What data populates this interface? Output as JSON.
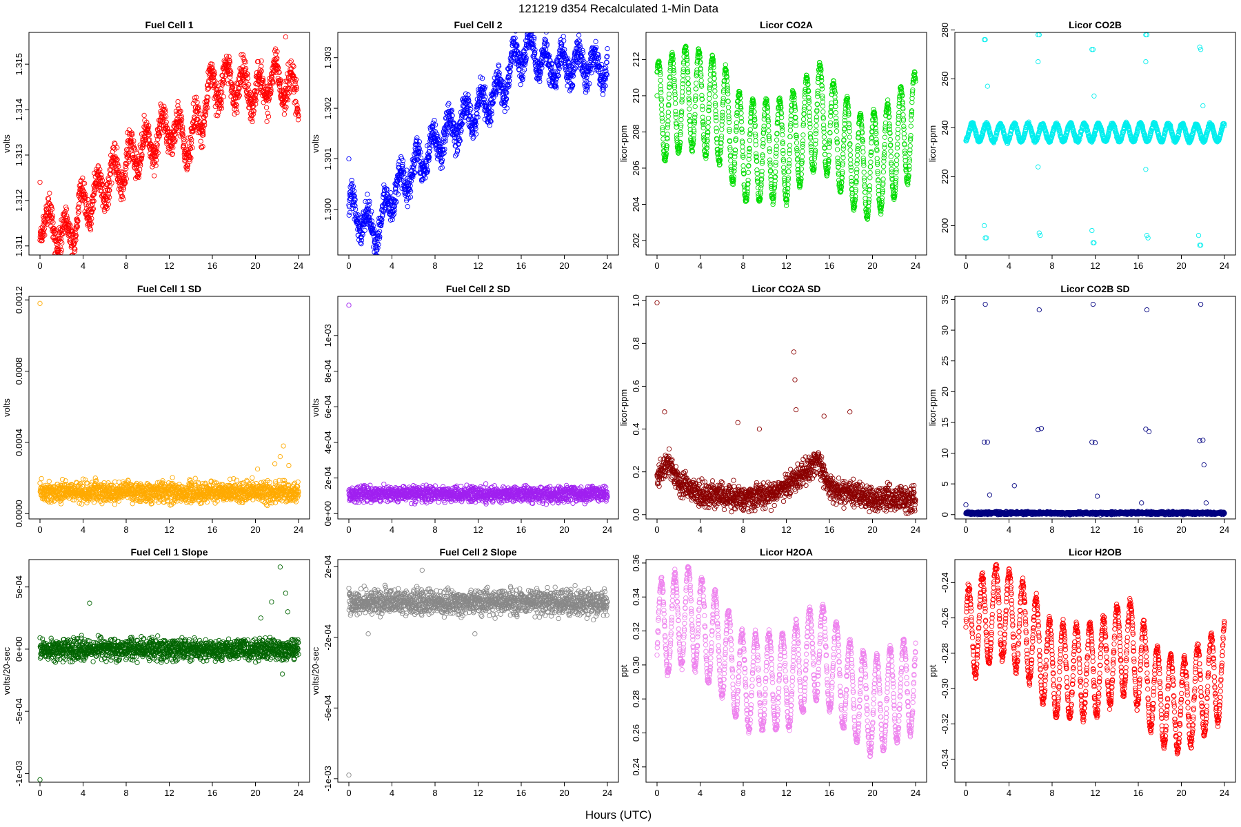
{
  "figure": {
    "title": "121219   d354   Recalculated 1-Min Data",
    "xlabel": "Hours (UTC)"
  },
  "chart_data": [
    {
      "type": "scatter",
      "title": "Fuel Cell 1",
      "ylabel": "volts",
      "xlim": [
        0,
        24
      ],
      "ylim": [
        1.3108,
        1.3157
      ],
      "yticks": [
        1.311,
        1.312,
        1.313,
        1.314,
        1.315
      ],
      "ytick_labels": [
        "1.311",
        "1.312",
        "1.313",
        "1.314",
        "1.315"
      ],
      "xticks": [
        0,
        4,
        8,
        12,
        16,
        20,
        24
      ],
      "color": "#ff0000",
      "outliers": [
        [
          0,
          1.3124
        ],
        [
          22.8,
          1.3156
        ]
      ],
      "series": [
        {
          "trend": [
            [
              0,
              1.3117
            ],
            [
              2.5,
              1.3111
            ],
            [
              4,
              1.3119
            ],
            [
              8,
              1.3128
            ],
            [
              12,
              1.3136
            ],
            [
              14,
              1.3133
            ],
            [
              16,
              1.3145
            ],
            [
              18,
              1.3146
            ],
            [
              20,
              1.3144
            ],
            [
              22,
              1.3147
            ],
            [
              24,
              1.3143
            ]
          ],
          "noise": 0.00025,
          "wave_amp": 0.0004,
          "wave_period": 1.5
        }
      ]
    },
    {
      "type": "scatter",
      "title": "Fuel Cell 2",
      "ylabel": "volts",
      "xlim": [
        0,
        24
      ],
      "ylim": [
        1.2991,
        1.3035
      ],
      "yticks": [
        1.3,
        1.301,
        1.302,
        1.303
      ],
      "ytick_labels": [
        "1.300",
        "1.301",
        "1.302",
        "1.303"
      ],
      "xticks": [
        0,
        4,
        8,
        12,
        16,
        20,
        24
      ],
      "color": "#0000ff",
      "outliers": [
        [
          0,
          1.301
        ]
      ],
      "series": [
        {
          "trend": [
            [
              0,
              1.3001
            ],
            [
              2.5,
              1.2995
            ],
            [
              4,
              1.3003
            ],
            [
              8,
              1.3013
            ],
            [
              12,
              1.302
            ],
            [
              14,
              1.3023
            ],
            [
              15.5,
              1.303
            ],
            [
              17,
              1.3032
            ],
            [
              18.5,
              1.3028
            ],
            [
              20,
              1.3029
            ],
            [
              24,
              1.3028
            ]
          ],
          "noise": 0.0002,
          "wave_amp": 0.0003,
          "wave_period": 1.5
        }
      ]
    },
    {
      "type": "scatter",
      "title": "Licor CO2A",
      "ylabel": "licor-ppm",
      "xlim": [
        0,
        24
      ],
      "ylim": [
        201.2,
        213.5
      ],
      "yticks": [
        202,
        204,
        206,
        208,
        210,
        212
      ],
      "ytick_labels": [
        "202",
        "204",
        "206",
        "208",
        "210",
        "212"
      ],
      "xticks": [
        0,
        4,
        8,
        12,
        16,
        20,
        24
      ],
      "color": "#00dd00",
      "outliers": [
        [
          0,
          210
        ]
      ],
      "series": [
        {
          "trend": [
            [
              0,
              209
            ],
            [
              3,
              210
            ],
            [
              6,
              209
            ],
            [
              8,
              207
            ],
            [
              12,
              207
            ],
            [
              15,
              209
            ],
            [
              17,
              207.5
            ],
            [
              19,
              206
            ],
            [
              21,
              206.5
            ],
            [
              24,
              208.5
            ]
          ],
          "noise": 0.15,
          "wave_amp": 2.8,
          "wave_period": 1.25
        }
      ]
    },
    {
      "type": "scatter",
      "title": "Licor CO2B",
      "ylabel": "licor-ppm",
      "xlim": [
        0,
        24
      ],
      "ylim": [
        188,
        279
      ],
      "yticks": [
        200,
        220,
        240,
        260,
        280
      ],
      "ytick_labels": [
        "200",
        "220",
        "240",
        "260",
        "280"
      ],
      "xticks": [
        0,
        4,
        8,
        12,
        16,
        20,
        24
      ],
      "color": "#00eeee",
      "outliers": [
        [
          1.7,
          276
        ],
        [
          1.8,
          276
        ],
        [
          1.7,
          200
        ],
        [
          1.8,
          195
        ],
        [
          1.9,
          195
        ],
        [
          2.0,
          257
        ],
        [
          6.7,
          278
        ],
        [
          6.8,
          278
        ],
        [
          6.7,
          267
        ],
        [
          6.8,
          197
        ],
        [
          6.9,
          196
        ],
        [
          6.7,
          224
        ],
        [
          11.7,
          272
        ],
        [
          11.8,
          272
        ],
        [
          11.7,
          198
        ],
        [
          11.8,
          193
        ],
        [
          11.9,
          193
        ],
        [
          11.9,
          253
        ],
        [
          16.7,
          278
        ],
        [
          16.8,
          278
        ],
        [
          16.7,
          267
        ],
        [
          16.8,
          196
        ],
        [
          16.9,
          195
        ],
        [
          16.7,
          223
        ],
        [
          21.7,
          273
        ],
        [
          21.8,
          272
        ],
        [
          21.6,
          196
        ],
        [
          21.7,
          192
        ],
        [
          21.8,
          192
        ],
        [
          22.0,
          249
        ]
      ],
      "series": [
        {
          "trend": [
            [
              0,
              238
            ],
            [
              24,
              238
            ]
          ],
          "noise": 0.5,
          "wave_amp": 3.5,
          "wave_period": 1.3
        }
      ]
    },
    {
      "type": "scatter",
      "title": "Fuel Cell 1 SD",
      "ylabel": "volts",
      "xlim": [
        0,
        24
      ],
      "ylim": [
        -3e-05,
        0.00122
      ],
      "yticks": [
        0.0,
        0.0004,
        0.0008,
        0.0012
      ],
      "ytick_labels": [
        "0.0000",
        "0.0004",
        "0.0008",
        "0.0012"
      ],
      "xticks": [
        0,
        4,
        8,
        12,
        16,
        20,
        24
      ],
      "color": "#ffaa00",
      "outliers": [
        [
          0,
          0.00118
        ],
        [
          22.6,
          0.00038
        ],
        [
          22.3,
          0.00032
        ],
        [
          21.8,
          0.00028
        ],
        [
          20.2,
          0.00025
        ],
        [
          23.1,
          0.00027
        ]
      ],
      "series": [
        {
          "trend": [
            [
              0,
              0.00012
            ],
            [
              24,
              0.00012
            ]
          ],
          "noise": 4e-05,
          "wave_amp": 0,
          "wave_period": 1
        }
      ]
    },
    {
      "type": "scatter",
      "title": "Fuel Cell 2 SD",
      "ylabel": "volts",
      "xlim": [
        0,
        24
      ],
      "ylim": [
        -3e-05,
        0.00122
      ],
      "yticks": [
        0,
        0.0002,
        0.0004,
        0.0006,
        0.0008,
        0.001
      ],
      "ytick_labels": [
        "0e+00",
        "2e-04",
        "4e-04",
        "6e-04",
        "8e-04",
        "1e-03"
      ],
      "xticks": [
        0,
        4,
        8,
        12,
        16,
        20,
        24
      ],
      "color": "#a020f0",
      "outliers": [
        [
          0,
          0.00117
        ]
      ],
      "series": [
        {
          "trend": [
            [
              0,
              0.00011
            ],
            [
              24,
              0.00011
            ]
          ],
          "noise": 3e-05,
          "wave_amp": 0,
          "wave_period": 1
        }
      ]
    },
    {
      "type": "scatter",
      "title": "Licor CO2A SD",
      "ylabel": "licor-ppm",
      "xlim": [
        0,
        24
      ],
      "ylim": [
        -0.02,
        1.02
      ],
      "yticks": [
        0.0,
        0.2,
        0.4,
        0.6,
        0.8,
        1.0
      ],
      "ytick_labels": [
        "0.0",
        "0.2",
        "0.4",
        "0.6",
        "0.8",
        "1.0"
      ],
      "xticks": [
        0,
        4,
        8,
        12,
        16,
        20,
        24
      ],
      "color": "#8b0000",
      "outliers": [
        [
          0,
          0.99
        ],
        [
          12.7,
          0.76
        ],
        [
          12.8,
          0.63
        ],
        [
          12.9,
          0.49
        ],
        [
          0.7,
          0.48
        ],
        [
          17.9,
          0.48
        ],
        [
          15.5,
          0.46
        ],
        [
          9.5,
          0.4
        ],
        [
          7.5,
          0.43
        ]
      ],
      "series": [
        {
          "trend": [
            [
              0,
              0.17
            ],
            [
              1,
              0.25
            ],
            [
              2,
              0.15
            ],
            [
              4,
              0.1
            ],
            [
              8,
              0.08
            ],
            [
              11,
              0.1
            ],
            [
              13,
              0.17
            ],
            [
              15,
              0.25
            ],
            [
              16,
              0.12
            ],
            [
              18,
              0.1
            ],
            [
              20,
              0.08
            ],
            [
              24,
              0.07
            ]
          ],
          "noise": 0.04,
          "wave_amp": 0,
          "wave_period": 1
        }
      ]
    },
    {
      "type": "scatter",
      "title": "Licor CO2B SD",
      "ylabel": "licor-ppm",
      "xlim": [
        0,
        24
      ],
      "ylim": [
        -0.7,
        35.5
      ],
      "yticks": [
        0,
        5,
        10,
        15,
        20,
        25,
        30,
        35
      ],
      "ytick_labels": [
        "0",
        "5",
        "10",
        "15",
        "20",
        "25",
        "30",
        "35"
      ],
      "xticks": [
        0,
        4,
        8,
        12,
        16,
        20,
        24
      ],
      "color": "#000080",
      "outliers": [
        [
          1.8,
          34.2
        ],
        [
          1.7,
          11.8
        ],
        [
          2.0,
          11.8
        ],
        [
          2.2,
          3.2
        ],
        [
          6.8,
          33.3
        ],
        [
          6.7,
          13.8
        ],
        [
          7.0,
          14
        ],
        [
          4.5,
          4.7
        ],
        [
          11.8,
          34.2
        ],
        [
          11.7,
          11.8
        ],
        [
          12.0,
          11.7
        ],
        [
          12.2,
          3
        ],
        [
          16.8,
          33.3
        ],
        [
          16.7,
          13.9
        ],
        [
          17.0,
          13.5
        ],
        [
          16.3,
          1.9
        ],
        [
          21.8,
          34.2
        ],
        [
          21.7,
          12
        ],
        [
          22.0,
          12.1
        ],
        [
          22.1,
          8.1
        ],
        [
          22.3,
          1.9
        ],
        [
          0,
          1.6
        ]
      ],
      "series": [
        {
          "trend": [
            [
              0,
              0.25
            ],
            [
              24,
              0.25
            ]
          ],
          "noise": 0.15,
          "wave_amp": 0,
          "wave_period": 1
        }
      ]
    },
    {
      "type": "scatter",
      "title": "Fuel Cell 1 Slope",
      "ylabel": "volts/20-sec",
      "xlim": [
        0,
        24
      ],
      "ylim": [
        -0.00107,
        0.00072
      ],
      "yticks": [
        -0.001,
        -0.0005,
        0,
        0.0005
      ],
      "ytick_labels": [
        "-1e-03",
        "-5e-04",
        "0e+00",
        "5e-04"
      ],
      "xticks": [
        0,
        4,
        8,
        12,
        16,
        20,
        24
      ],
      "color": "#006400",
      "outliers": [
        [
          0,
          -0.00105
        ],
        [
          22.3,
          0.00066
        ],
        [
          22.8,
          0.00045
        ],
        [
          4.6,
          0.00037
        ],
        [
          21.5,
          0.00038
        ],
        [
          20.5,
          0.00025
        ],
        [
          23.0,
          0.0003
        ],
        [
          22.5,
          -0.0002
        ]
      ],
      "series": [
        {
          "trend": [
            [
              0,
              0
            ],
            [
              24,
              0
            ]
          ],
          "noise": 6e-05,
          "wave_amp": 0,
          "wave_period": 1
        }
      ]
    },
    {
      "type": "scatter",
      "title": "Fuel Cell 2 Slope",
      "ylabel": "volts/20-sec",
      "xlim": [
        0,
        24
      ],
      "ylim": [
        -0.00102,
        0.00024
      ],
      "yticks": [
        -0.001,
        -0.0006,
        -0.0002,
        0.0002
      ],
      "ytick_labels": [
        "-1e-03",
        "-6e-04",
        "-2e-04",
        "2e-04"
      ],
      "xticks": [
        0,
        4,
        8,
        12,
        16,
        20,
        24
      ],
      "color": "#888888",
      "outliers": [
        [
          0,
          -0.00098
        ],
        [
          6.8,
          0.00018
        ],
        [
          1.8,
          -0.00018
        ],
        [
          11.7,
          -0.00018
        ]
      ],
      "series": [
        {
          "trend": [
            [
              0,
              0
            ],
            [
              24,
              0
            ]
          ],
          "noise": 5e-05,
          "wave_amp": 0,
          "wave_period": 1
        }
      ]
    },
    {
      "type": "scatter",
      "title": "Licor H2OA",
      "ylabel": "ppt",
      "xlim": [
        0,
        24
      ],
      "ylim": [
        0.231,
        0.362
      ],
      "yticks": [
        0.24,
        0.26,
        0.28,
        0.3,
        0.32,
        0.34,
        0.36
      ],
      "ytick_labels": [
        "0.24",
        "0.26",
        "0.28",
        "0.30",
        "0.32",
        "0.34",
        "0.36"
      ],
      "xticks": [
        0,
        4,
        8,
        12,
        16,
        20,
        24
      ],
      "color": "#ee82ee",
      "outliers": [],
      "series": [
        {
          "trend": [
            [
              0,
              0.32
            ],
            [
              3,
              0.33
            ],
            [
              6,
              0.31
            ],
            [
              8,
              0.29
            ],
            [
              12,
              0.29
            ],
            [
              15,
              0.31
            ],
            [
              18,
              0.285
            ],
            [
              20,
              0.275
            ],
            [
              24,
              0.29
            ]
          ],
          "noise": 0.002,
          "wave_amp": 0.028,
          "wave_period": 1.25
        }
      ]
    },
    {
      "type": "scatter",
      "title": "Licor H2OB",
      "ylabel": "ppt",
      "xlim": [
        0,
        24
      ],
      "ylim": [
        -0.353,
        -0.227
      ],
      "yticks": [
        -0.34,
        -0.32,
        -0.3,
        -0.28,
        -0.26,
        -0.24
      ],
      "ytick_labels": [
        "-0.34",
        "-0.32",
        "-0.30",
        "-0.28",
        "-0.26",
        "-0.24"
      ],
      "xticks": [
        0,
        4,
        8,
        12,
        16,
        20,
        24
      ],
      "color": "#ff0000",
      "outliers": [],
      "series": [
        {
          "trend": [
            [
              0,
              -0.27
            ],
            [
              3,
              -0.255
            ],
            [
              6,
              -0.27
            ],
            [
              8,
              -0.29
            ],
            [
              12,
              -0.29
            ],
            [
              15,
              -0.275
            ],
            [
              18,
              -0.305
            ],
            [
              20,
              -0.31
            ],
            [
              24,
              -0.29
            ]
          ],
          "noise": 0.002,
          "wave_amp": 0.026,
          "wave_period": 1.25
        }
      ]
    }
  ]
}
